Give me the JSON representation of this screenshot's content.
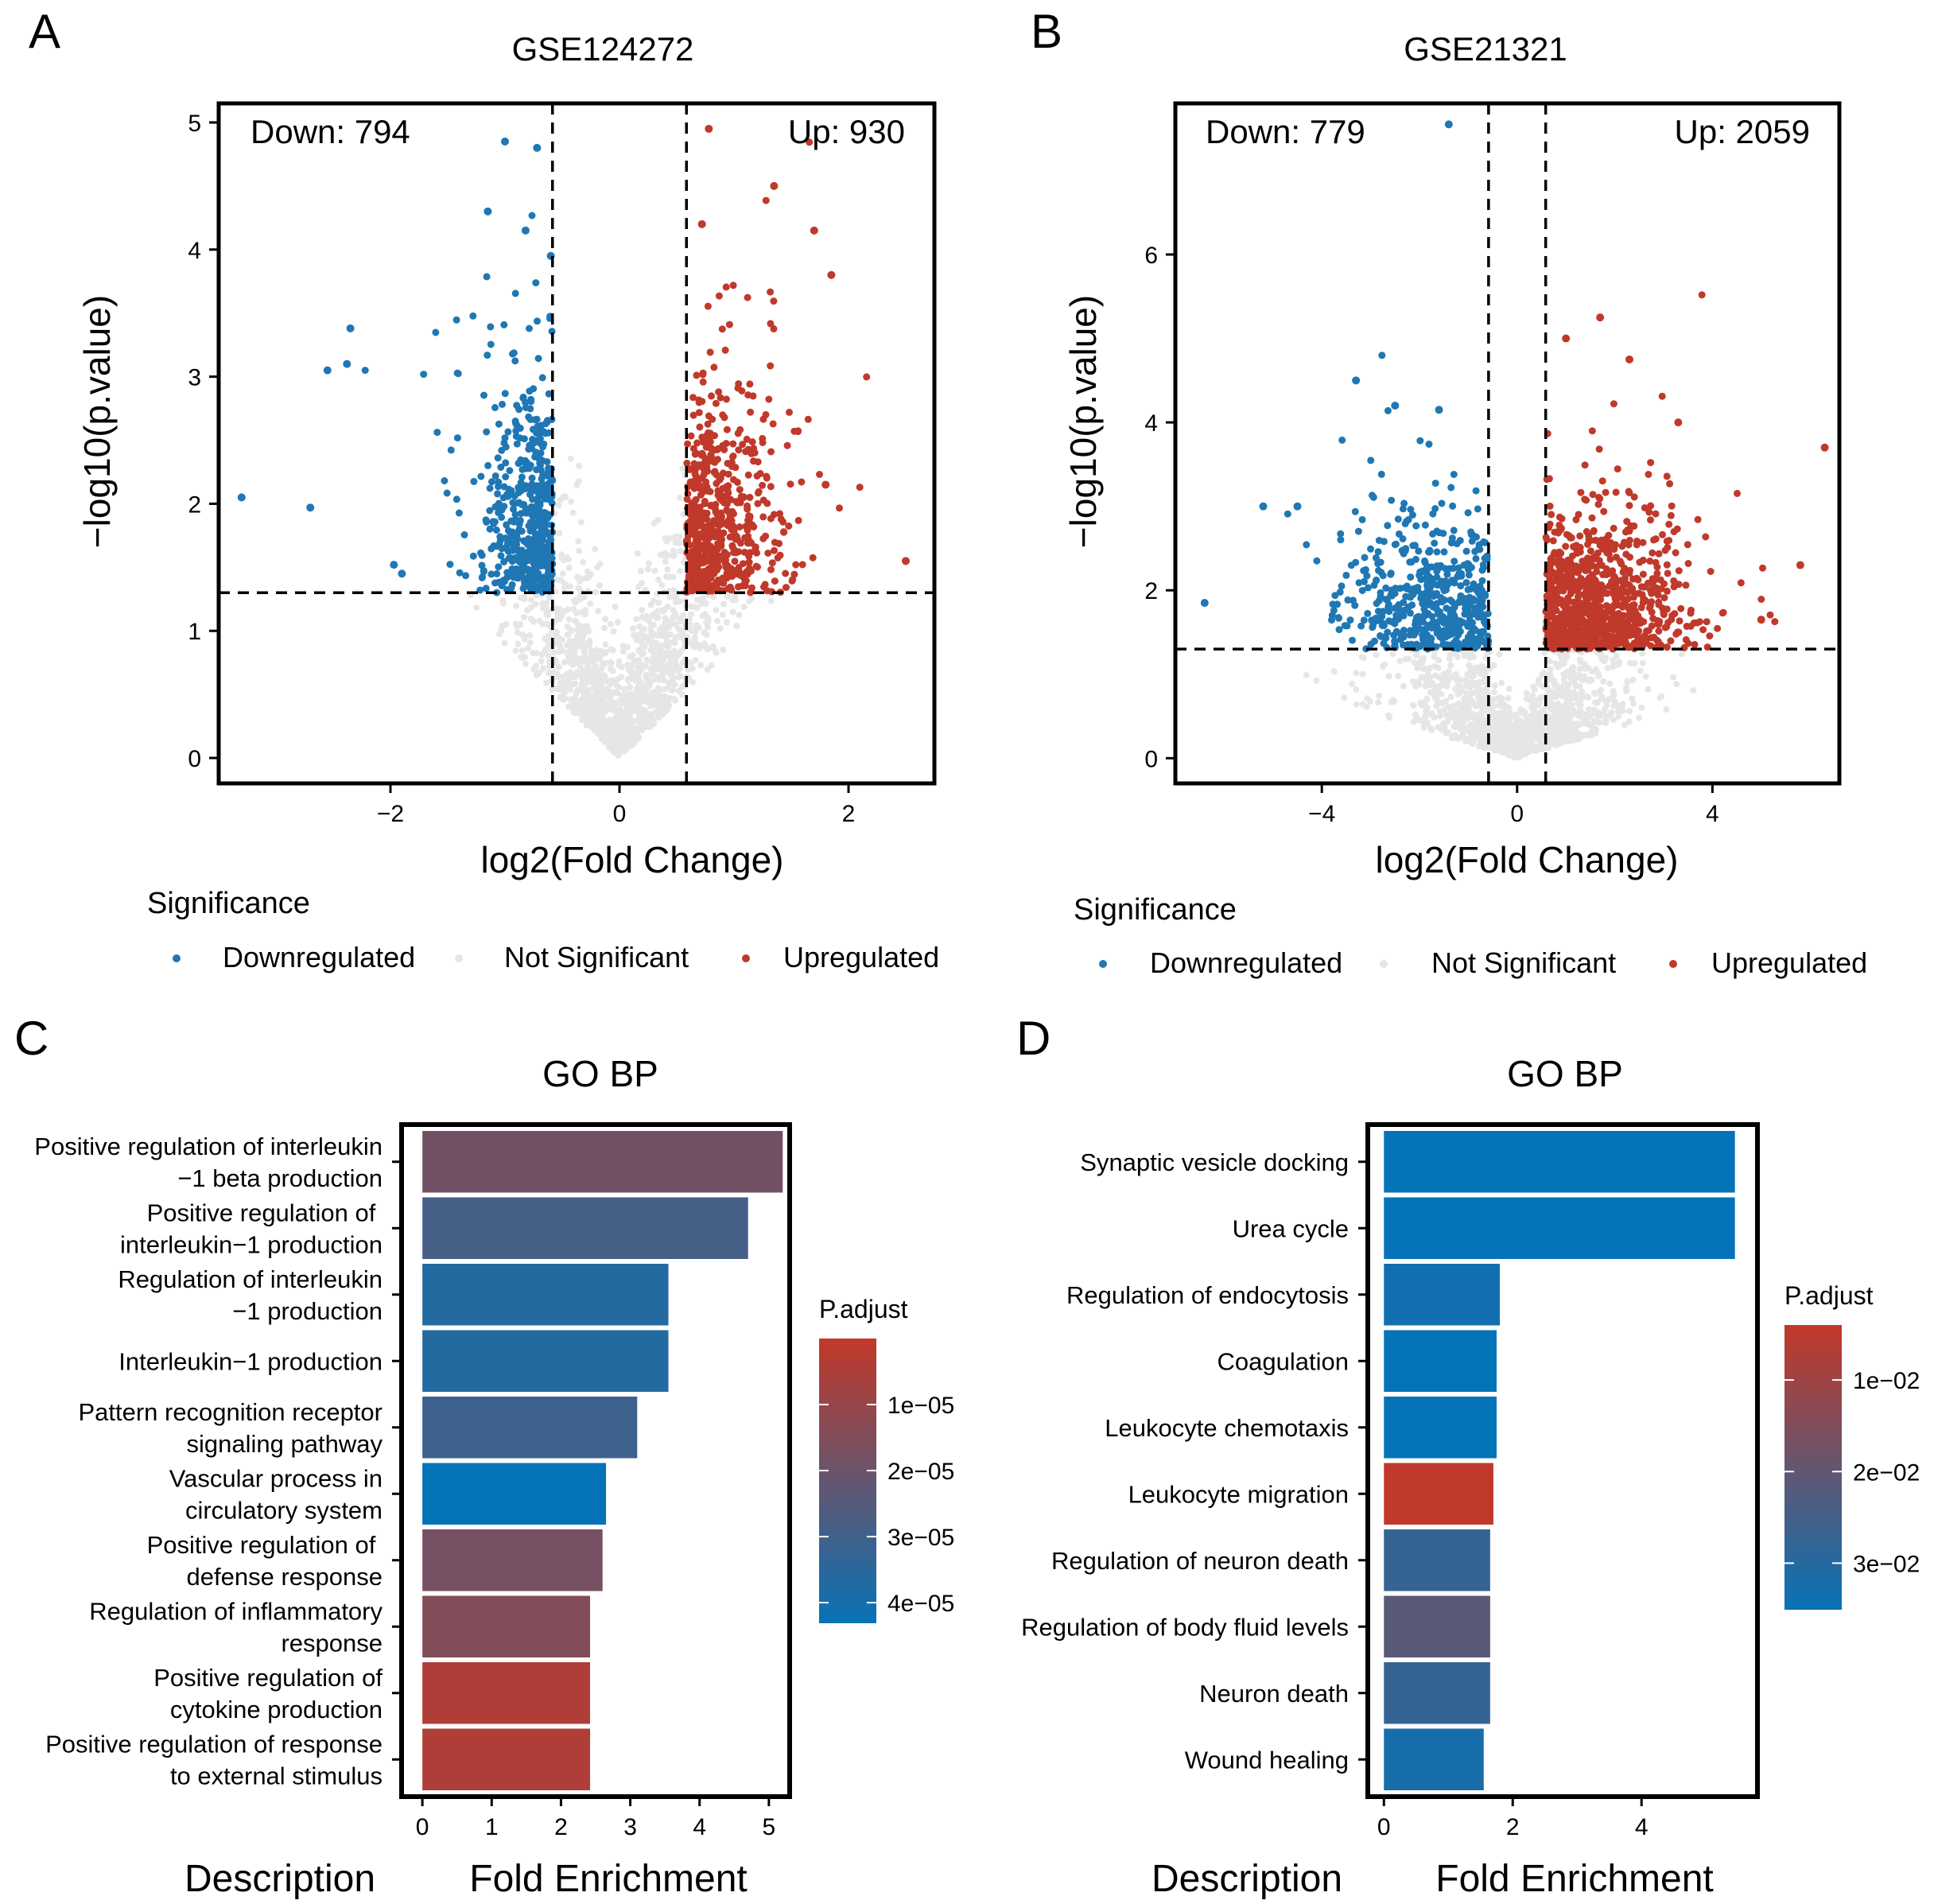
{
  "panels": {
    "A": {
      "letter": "A",
      "title": "GSE124272",
      "down_label": "Down: 794",
      "up_label": "Up: 930",
      "xlabel": "log2(Fold Change)",
      "ylabel": "−log10(p.value)"
    },
    "B": {
      "letter": "B",
      "title": "GSE21321",
      "down_label": "Down: 779",
      "up_label": "Up: 2059",
      "xlabel": "log2(Fold Change)",
      "ylabel": "−log10(p.value)"
    },
    "C": {
      "letter": "C",
      "title": "GO BP",
      "xlabel": "Fold Enrichment",
      "desc_label": "Description",
      "legend_title": "P.adjust"
    },
    "D": {
      "letter": "D",
      "title": "GO BP",
      "xlabel": "Fold Enrichment",
      "desc_label": "Description",
      "legend_title": "P.adjust"
    }
  },
  "legend": {
    "title": "Significance",
    "items": [
      "Downregulated",
      "Not Significant",
      "Upregulated"
    ]
  },
  "colors": {
    "down": "#1f77b4",
    "up": "#c0392b",
    "ns": "#e6e6e6",
    "bar_low": "#c0392b",
    "bar_high": "#0573b8"
  },
  "chart_data": [
    {
      "id": "A",
      "type": "scatter",
      "title": "GSE124272",
      "xlabel": "log2(Fold Change)",
      "ylabel": "−log10(p.value)",
      "xlim": [
        -3.5,
        2.75
      ],
      "ylim": [
        -0.2,
        5.15
      ],
      "xticks": [
        -2,
        0,
        2
      ],
      "yticks": [
        0,
        1,
        2,
        3,
        4,
        5
      ],
      "fc_threshold": 0.585,
      "p_threshold": 1.3,
      "annotations": {
        "down": "Down: 794",
        "up": "Up: 930"
      },
      "highlight_points": {
        "down": [
          [
            -3.3,
            2.05
          ],
          [
            -2.7,
            1.97
          ],
          [
            -2.55,
            3.05
          ],
          [
            -2.38,
            3.1
          ],
          [
            -2.35,
            3.38
          ],
          [
            -1.97,
            1.52
          ],
          [
            -1.9,
            1.45
          ],
          [
            -1.15,
            4.3
          ],
          [
            -1.0,
            4.85
          ],
          [
            -0.72,
            4.8
          ],
          [
            -0.82,
            4.15
          ],
          [
            -0.6,
            3.95
          ]
        ],
        "up": [
          [
            0.78,
            4.95
          ],
          [
            1.35,
            4.5
          ],
          [
            0.72,
            4.2
          ],
          [
            1.7,
            4.15
          ],
          [
            1.85,
            3.8
          ],
          [
            2.5,
            1.55
          ],
          [
            1.8,
            2.15
          ]
        ]
      },
      "legend": [
        "Downregulated",
        "Not Significant",
        "Upregulated"
      ]
    },
    {
      "id": "B",
      "type": "scatter",
      "title": "GSE21321",
      "xlabel": "log2(Fold Change)",
      "ylabel": "−log10(p.value)",
      "xlim": [
        -7.0,
        6.6
      ],
      "ylim": [
        -0.3,
        7.8
      ],
      "xticks": [
        -4,
        0,
        4
      ],
      "yticks": [
        0,
        2,
        4,
        6
      ],
      "fc_threshold": 0.585,
      "p_threshold": 1.3,
      "annotations": {
        "down": "Down: 779",
        "up": "Up: 2059"
      },
      "highlight_points": {
        "down": [
          [
            -1.4,
            7.55
          ],
          [
            -3.3,
            4.5
          ],
          [
            -6.4,
            1.85
          ],
          [
            -5.2,
            3.0
          ],
          [
            -4.5,
            3.0
          ],
          [
            -2.5,
            4.2
          ],
          [
            -1.6,
            4.15
          ]
        ],
        "up": [
          [
            1.7,
            5.25
          ],
          [
            1.0,
            5.0
          ],
          [
            2.3,
            4.75
          ],
          [
            3.3,
            4.0
          ],
          [
            6.3,
            3.7
          ],
          [
            5.8,
            2.3
          ],
          [
            5.0,
            1.65
          ]
        ]
      },
      "legend": [
        "Downregulated",
        "Not Significant",
        "Upregulated"
      ]
    },
    {
      "id": "C",
      "type": "bar",
      "orientation": "horizontal",
      "title": "GO BP",
      "xlabel": "Fold Enrichment",
      "ylabel": "Description",
      "xlim": [
        -0.3,
        5.3
      ],
      "xticks": [
        0,
        1,
        2,
        3,
        4,
        5
      ],
      "categories": [
        "Positive regulation of interleukin\n−1 beta production",
        "Positive regulation of \ninterleukin−1 production",
        "Regulation of interleukin\n−1 production",
        "Interleukin−1 production",
        "Pattern recognition receptor\nsignaling pathway",
        "Vascular process in\ncirculatory system",
        "Positive regulation of \ndefense response",
        "Regulation of inflammatory\nresponse",
        "Positive regulation of\ncytokine production",
        "Positive regulation of response\nto external stimulus"
      ],
      "values": [
        5.2,
        4.7,
        3.55,
        3.55,
        3.1,
        2.65,
        2.6,
        2.42,
        2.42,
        2.42
      ],
      "p_adjust": [
        1.8e-05,
        2.8e-05,
        3.6e-05,
        3.6e-05,
        3e-05,
        4.3e-05,
        1.7e-05,
        1.4e-05,
        4e-06,
        4e-06
      ],
      "color_scale": {
        "title": "P.adjust",
        "min": 0.0,
        "max": 4.3e-05,
        "ticks": [
          1e-05,
          2e-05,
          3e-05,
          4e-05
        ],
        "tick_labels": [
          "1e−05",
          "2e−05",
          "3e−05",
          "4e−05"
        ]
      }
    },
    {
      "id": "D",
      "type": "bar",
      "orientation": "horizontal",
      "title": "GO BP",
      "xlabel": "Fold Enrichment",
      "ylabel": "Description",
      "xlim": [
        -0.25,
        5.8
      ],
      "xticks": [
        0,
        2,
        4
      ],
      "categories": [
        "Synaptic vesicle docking",
        "Urea cycle",
        "Regulation of endocytosis",
        "Coagulation",
        "Leukocyte chemotaxis",
        "Leukocyte migration",
        "Regulation of neuron death",
        "Regulation of body fluid levels",
        "Neuron death",
        "Wound healing"
      ],
      "values": [
        5.45,
        5.45,
        1.8,
        1.75,
        1.75,
        1.7,
        1.65,
        1.65,
        1.65,
        1.55
      ],
      "p_adjust": [
        0.035,
        0.035,
        0.033,
        0.035,
        0.035,
        0.004,
        0.027,
        0.021,
        0.027,
        0.032
      ],
      "color_scale": {
        "title": "P.adjust",
        "min": 0.004,
        "max": 0.035,
        "ticks": [
          0.01,
          0.02,
          0.03
        ],
        "tick_labels": [
          "1e−02",
          "2e−02",
          "3e−02"
        ]
      }
    }
  ]
}
